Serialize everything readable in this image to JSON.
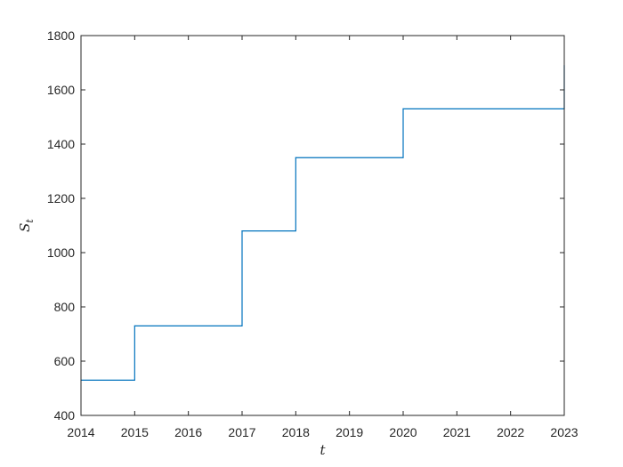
{
  "chart_data": {
    "type": "line",
    "step": "post",
    "xlabel": "t",
    "ylabel_main": "S",
    "ylabel_sub": "t",
    "xlim": [
      2014,
      2023
    ],
    "ylim": [
      400,
      1800
    ],
    "xticks": [
      2014,
      2015,
      2016,
      2017,
      2018,
      2019,
      2020,
      2021,
      2022,
      2023
    ],
    "yticks": [
      400,
      600,
      800,
      1000,
      1200,
      1400,
      1600,
      1800
    ],
    "grid": false,
    "series": [
      {
        "color": "#0072BD",
        "x": [
          2014,
          2015,
          2017,
          2018,
          2020,
          2023
        ],
        "y": [
          530,
          730,
          1080,
          1350,
          1530,
          1690
        ]
      }
    ]
  }
}
